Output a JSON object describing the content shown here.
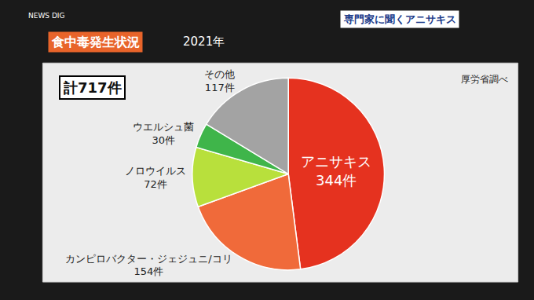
{
  "chart_data": {
    "type": "pie",
    "title": "食中毒発生状況",
    "subtitle": "2021年",
    "annotations": [
      "計717件",
      "厚労省調べ",
      "専門家に聞くアニサキス",
      "NEWS DIG"
    ],
    "categories": [
      "アニサキス",
      "カンピロバクター・ジェジュニ/コリ",
      "ノロウイルス",
      "ウエルシュ菌",
      "その他"
    ],
    "values": [
      344,
      154,
      72,
      30,
      117
    ],
    "value_labels": [
      "344件",
      "154件",
      "72件",
      "30件",
      "117件"
    ],
    "colors": [
      "#e5321f",
      "#f06a3a",
      "#b8e03c",
      "#3fb54a",
      "#a3a3a3"
    ],
    "data_labels": true
  }
}
